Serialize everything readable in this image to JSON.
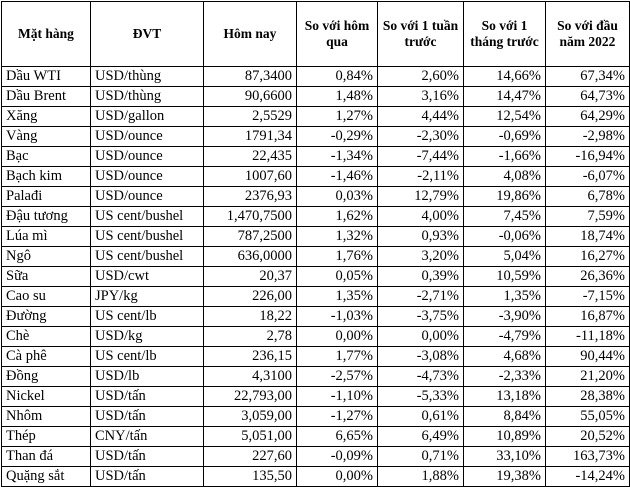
{
  "headers": [
    "Mặt hàng",
    "ĐVT",
    "Hôm nay",
    "So với hôm qua",
    "So với 1 tuần trước",
    "So với 1 tháng trước",
    "So với đầu năm 2022"
  ],
  "rows": [
    [
      "Dầu WTI",
      "USD/thùng",
      "87,3400",
      "0,84%",
      "2,60%",
      "14,66%",
      "67,34%"
    ],
    [
      "Dầu Brent",
      "USD/thùng",
      "90,6600",
      "1,48%",
      "3,16%",
      "14,47%",
      "64,73%"
    ],
    [
      "Xăng",
      "USD/gallon",
      "2,5529",
      "1,27%",
      "4,44%",
      "12,54%",
      "64,29%"
    ],
    [
      "Vàng",
      "USD/ounce",
      "1791,34",
      "-0,29%",
      "-2,30%",
      "-0,69%",
      "-2,98%"
    ],
    [
      "Bạc",
      "USD/ounce",
      "22,435",
      "-1,34%",
      "-7,44%",
      "-1,66%",
      "-16,94%"
    ],
    [
      "Bạch kim",
      "USD/ounce",
      "1007,60",
      "-1,46%",
      "-2,11%",
      "4,08%",
      "-6,07%"
    ],
    [
      "Palađi",
      "USD/ounce",
      "2376,93",
      "0,03%",
      "12,79%",
      "19,86%",
      "6,78%"
    ],
    [
      "Đậu tương",
      "US cent/bushel",
      "1,470,7500",
      "1,62%",
      "4,00%",
      "7,45%",
      "7,59%"
    ],
    [
      "Lúa mì",
      "US cent/bushel",
      "787,2500",
      "1,32%",
      "0,93%",
      "-0,06%",
      "18,74%"
    ],
    [
      "Ngô",
      "US cent/bushel",
      "636,0000",
      "1,76%",
      "3,20%",
      "5,04%",
      "16,27%"
    ],
    [
      "Sữa",
      "USD/cwt",
      "20,37",
      "0,05%",
      "0,39%",
      "10,59%",
      "26,36%"
    ],
    [
      "Cao su",
      "JPY/kg",
      "226,00",
      "1,35%",
      "-2,71%",
      "1,35%",
      "-7,15%"
    ],
    [
      "Đường",
      "US cent/lb",
      "18,22",
      "-1,03%",
      "-3,75%",
      "-3,90%",
      "16,87%"
    ],
    [
      "Chè",
      "USD/kg",
      "2,78",
      "0,00%",
      "0,00%",
      "-4,79%",
      "-11,18%"
    ],
    [
      "Cà phê",
      "US cent/lb",
      "236,15",
      "1,77%",
      "-3,08%",
      "4,68%",
      "90,44%"
    ],
    [
      "Đồng",
      "USD/lb",
      "4,3100",
      "-2,57%",
      "-4,73%",
      "-2,33%",
      "21,20%"
    ],
    [
      "Nickel",
      "USD/tấn",
      "22,793,00",
      "-1,10%",
      "-5,33%",
      "13,18%",
      "28,38%"
    ],
    [
      "Nhôm",
      "USD/tấn",
      "3,059,00",
      "-1,27%",
      "0,61%",
      "8,84%",
      "55,05%"
    ],
    [
      "Thép",
      "CNY/tấn",
      "5,051,00",
      "6,65%",
      "6,49%",
      "10,89%",
      "20,52%"
    ],
    [
      "Than đá",
      "USD/tấn",
      "227,60",
      "-0,09%",
      "0,71%",
      "33,10%",
      "163,73%"
    ],
    [
      "Quặng sắt",
      "USD/tấn",
      "135,50",
      "0,00%",
      "1,88%",
      "19,38%",
      "-14,24%"
    ]
  ]
}
